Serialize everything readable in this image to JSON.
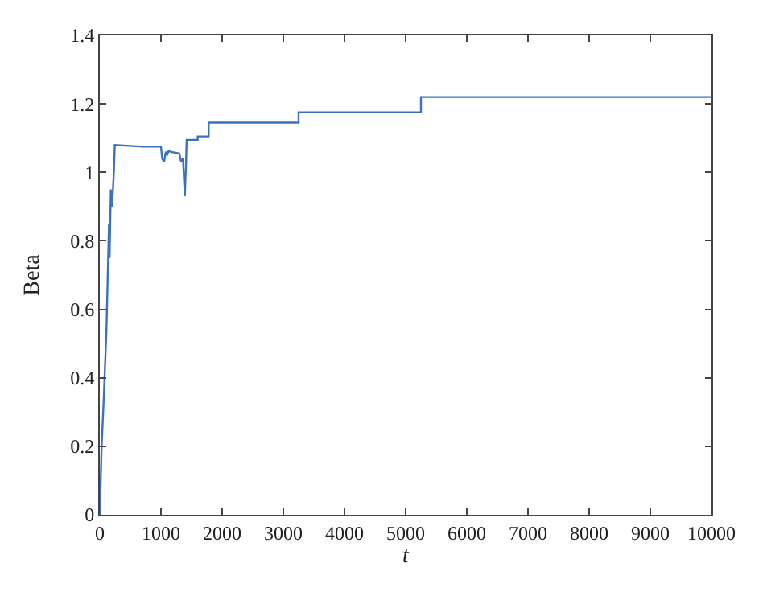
{
  "chart_data": {
    "type": "line",
    "xlabel": "t",
    "ylabel": "Beta",
    "xlim": [
      0,
      10000
    ],
    "xticks": [
      0,
      1000,
      2000,
      3000,
      4000,
      5000,
      6000,
      7000,
      8000,
      9000,
      10000
    ],
    "ylim": [
      0,
      1.4
    ],
    "yticks": [
      0,
      0.2,
      0.4,
      0.6,
      0.8,
      1,
      1.2,
      1.4
    ],
    "x": [
      0,
      30,
      60,
      100,
      110,
      130,
      150,
      160,
      180,
      200,
      230,
      245,
      700,
      1000,
      1020,
      1050,
      1080,
      1100,
      1130,
      1150,
      1300,
      1330,
      1360,
      1390,
      1410,
      1420,
      1600,
      1600,
      1780,
      1780,
      3250,
      3250,
      5250,
      5250,
      10000
    ],
    "series": [
      {
        "color": "#3a72c0",
        "values": [
          0,
          0.2,
          0.32,
          0.5,
          0.55,
          0.7,
          0.85,
          0.75,
          0.95,
          0.9,
          1.0,
          1.08,
          1.075,
          1.075,
          1.04,
          1.03,
          1.06,
          1.05,
          1.065,
          1.06,
          1.055,
          1.03,
          1.04,
          0.93,
          1.03,
          1.095,
          1.095,
          1.105,
          1.105,
          1.145,
          1.145,
          1.175,
          1.175,
          1.22,
          1.22
        ]
      }
    ]
  }
}
